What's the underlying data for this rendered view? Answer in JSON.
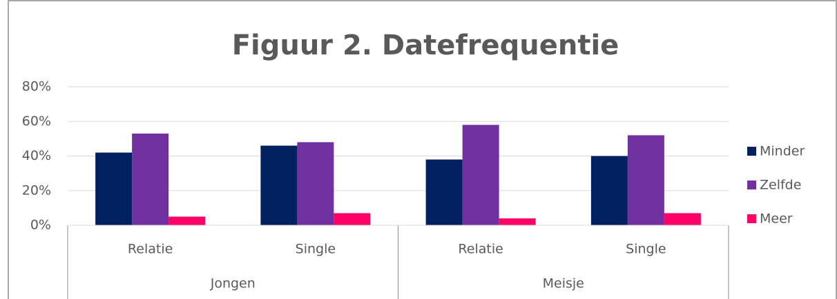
{
  "chart_data": {
    "type": "bar",
    "title": "Figuur 2. Datefrequentie",
    "categories": [
      "Relatie",
      "Single",
      "Relatie",
      "Single"
    ],
    "groups": [
      "Jongen",
      "Meisje"
    ],
    "series": [
      {
        "name": "Minder",
        "color": "#002060",
        "values": [
          42,
          46,
          38,
          40
        ]
      },
      {
        "name": "Zelfde",
        "color": "#7030a0",
        "values": [
          53,
          48,
          58,
          52
        ]
      },
      {
        "name": "Meer",
        "color": "#ff0066",
        "values": [
          5,
          7,
          4,
          7
        ]
      }
    ],
    "ylim": [
      0,
      80
    ],
    "yticks": [
      {
        "value": 0,
        "label": "0%"
      },
      {
        "value": 20,
        "label": "20%"
      },
      {
        "value": 40,
        "label": "40%"
      },
      {
        "value": 60,
        "label": "60%"
      },
      {
        "value": 80,
        "label": "80%"
      }
    ],
    "grid": true,
    "legend": "right"
  }
}
